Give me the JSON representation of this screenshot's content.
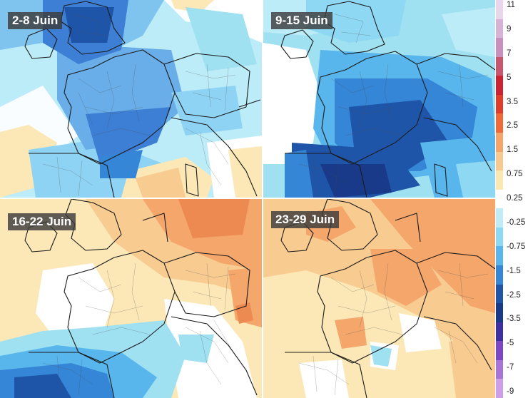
{
  "panels": [
    {
      "label": "2-8 Juin"
    },
    {
      "label": "9-15 Juin"
    },
    {
      "label": "16-22 Juin"
    },
    {
      "label": "23-29 Juin"
    }
  ],
  "scale": {
    "ticks": [
      "11",
      "9",
      "7",
      "5",
      "3.5",
      "2.5",
      "1.5",
      "0.75",
      "0.25",
      "-0.25",
      "-0.75",
      "-1.5",
      "-2.5",
      "-3.5",
      "-5",
      "-7",
      "-9"
    ],
    "colors": [
      "#e9d6ea",
      "#d8b2d6",
      "#c98fbf",
      "#c9566f",
      "#cb2332",
      "#e03c2a",
      "#ef6a39",
      "#f5a56a",
      "#f7c98e",
      "#fbe7b0",
      "#ffffff",
      "#bfecf6",
      "#8ed8f4",
      "#58b6ec",
      "#3586d6",
      "#1f55a8",
      "#183a88",
      "#3e2fa3",
      "#7c47c3",
      "#a775d8",
      "#cf9ee8"
    ]
  },
  "colors": {
    "dark_blue": "#1f4fa3",
    "mid_blue": "#3d7fd4",
    "light_blue": "#6fb3ea",
    "cyan": "#9fe0f1",
    "white": "#ffffff",
    "pale_yellow": "#fbe8b6",
    "light_orange": "#f8cb91",
    "orange": "#f4a66b",
    "dark_orange": "#ec8a52"
  }
}
